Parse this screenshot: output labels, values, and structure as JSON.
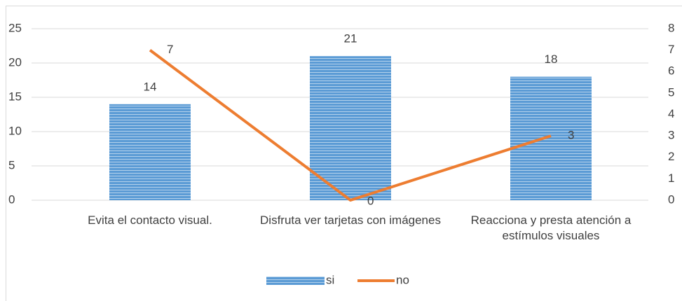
{
  "chart_data": {
    "type": "bar",
    "categories": [
      "Evita el contacto visual.",
      "Disfruta ver tarjetas con imágenes",
      "Reacciona y presta atención a estímulos visuales"
    ],
    "series": [
      {
        "name": "si",
        "type": "bar",
        "color": "#5b9bd5",
        "values": [
          14,
          21,
          18
        ]
      },
      {
        "name": "no",
        "type": "line",
        "color": "#ed7d31",
        "axis": "y2",
        "values": [
          7,
          0,
          3
        ]
      }
    ],
    "ylim": [
      0,
      25
    ],
    "yticks": [
      0,
      5,
      10,
      15,
      20,
      25
    ],
    "y2lim": [
      0,
      8
    ],
    "y2ticks": [
      0,
      1,
      2,
      3,
      4,
      5,
      6,
      7,
      8
    ],
    "grid": true,
    "legend": "bottom"
  }
}
